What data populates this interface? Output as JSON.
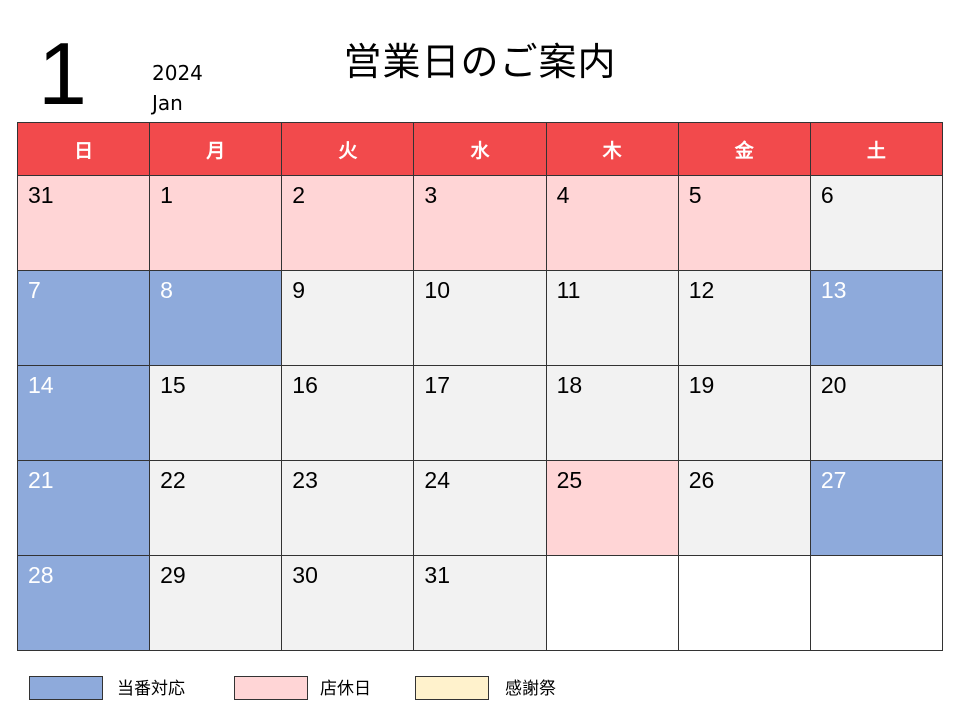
{
  "header": {
    "month_number": "1",
    "year": "2024",
    "month_name": "Jan",
    "title": "営業日のご案内"
  },
  "colors": {
    "header_bg": "#f24a4c",
    "duty": "#8eaadb",
    "closed": "#ffd5d6",
    "thanks": "#fff2cc",
    "normal": "#f2f2f2",
    "empty": "#ffffff"
  },
  "weekdays": [
    "日",
    "月",
    "火",
    "水",
    "木",
    "金",
    "土"
  ],
  "weeks": [
    [
      {
        "day": "31",
        "type": "closed"
      },
      {
        "day": "1",
        "type": "closed"
      },
      {
        "day": "2",
        "type": "closed"
      },
      {
        "day": "3",
        "type": "closed"
      },
      {
        "day": "4",
        "type": "closed"
      },
      {
        "day": "5",
        "type": "closed"
      },
      {
        "day": "6",
        "type": "normal"
      }
    ],
    [
      {
        "day": "7",
        "type": "duty"
      },
      {
        "day": "8",
        "type": "duty"
      },
      {
        "day": "9",
        "type": "normal"
      },
      {
        "day": "10",
        "type": "normal"
      },
      {
        "day": "11",
        "type": "normal"
      },
      {
        "day": "12",
        "type": "normal"
      },
      {
        "day": "13",
        "type": "duty"
      }
    ],
    [
      {
        "day": "14",
        "type": "duty"
      },
      {
        "day": "15",
        "type": "normal"
      },
      {
        "day": "16",
        "type": "normal"
      },
      {
        "day": "17",
        "type": "normal"
      },
      {
        "day": "18",
        "type": "normal"
      },
      {
        "day": "19",
        "type": "normal"
      },
      {
        "day": "20",
        "type": "normal"
      }
    ],
    [
      {
        "day": "21",
        "type": "duty"
      },
      {
        "day": "22",
        "type": "normal"
      },
      {
        "day": "23",
        "type": "normal"
      },
      {
        "day": "24",
        "type": "normal"
      },
      {
        "day": "25",
        "type": "closed"
      },
      {
        "day": "26",
        "type": "normal"
      },
      {
        "day": "27",
        "type": "duty"
      }
    ],
    [
      {
        "day": "28",
        "type": "duty"
      },
      {
        "day": "29",
        "type": "normal"
      },
      {
        "day": "30",
        "type": "normal"
      },
      {
        "day": "31",
        "type": "normal"
      },
      {
        "day": "",
        "type": "empty"
      },
      {
        "day": "",
        "type": "empty"
      },
      {
        "day": "",
        "type": "empty"
      }
    ]
  ],
  "legend": [
    {
      "label": "当番対応",
      "type": "duty"
    },
    {
      "label": "店休日",
      "type": "closed"
    },
    {
      "label": "感謝祭",
      "type": "thanks"
    }
  ]
}
